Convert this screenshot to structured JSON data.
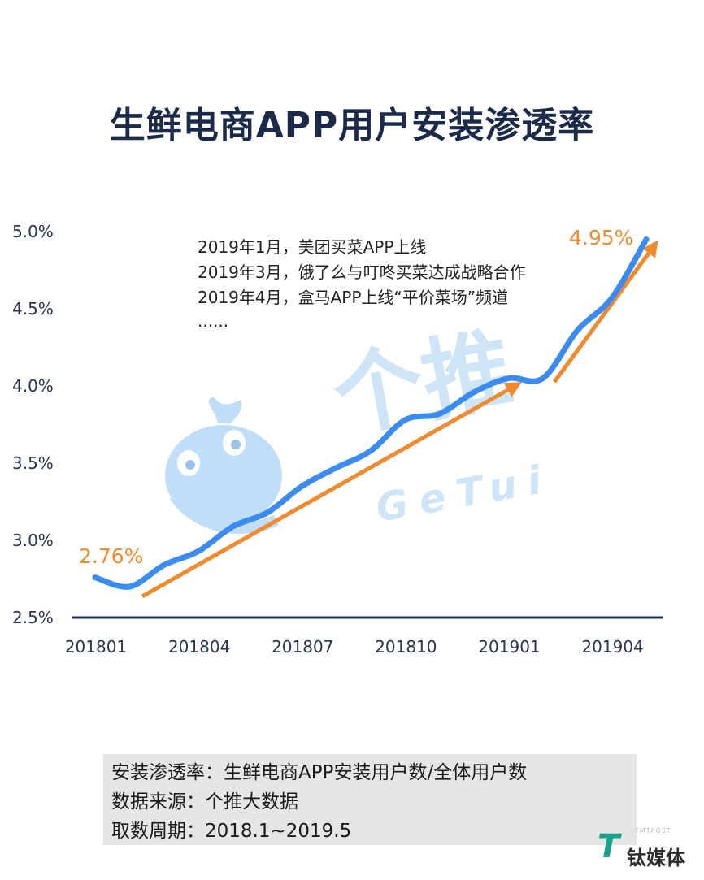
{
  "title": "生鲜电商APP用户安装渗透率",
  "annotations": [
    "2019年1月，美团买菜APP上线",
    "2019年3月，饿了么与叮咚买菜达成战略合作",
    "2019年4月，盒马APP上线“平价菜场”频道",
    "......"
  ],
  "watermark": {
    "cn": "个推",
    "en": "GeTui"
  },
  "notes": [
    "安装渗透率：生鲜电商APP安装用户数/全体用户数",
    "数据来源：个推大数据",
    "取数周期：2018.1~2019.5"
  ],
  "logo": {
    "sub": "TMTPOST",
    "text": "钛媒体"
  },
  "colors": {
    "line": "#3b8bf0",
    "arrow": "#f08a2e",
    "axis": "#1c2a4a"
  },
  "chart_data": {
    "type": "line",
    "x": [
      "201801",
      "201802",
      "201803",
      "201804",
      "201805",
      "201806",
      "201807",
      "201808",
      "201809",
      "201810",
      "201811",
      "201812",
      "201901",
      "201902",
      "201903",
      "201904",
      "201905"
    ],
    "xtick_labels": [
      "201801",
      "201804",
      "201807",
      "201810",
      "201901",
      "201904"
    ],
    "series": [
      {
        "values": [
          2.76,
          2.7,
          2.84,
          2.93,
          3.09,
          3.18,
          3.35,
          3.47,
          3.58,
          3.78,
          3.82,
          3.96,
          4.05,
          4.05,
          4.36,
          4.57,
          4.95
        ]
      }
    ],
    "ylim": [
      2.5,
      5.0
    ],
    "yticks": [
      "2.5%",
      "3.0%",
      "3.5%",
      "4.0%",
      "4.5%",
      "5.0%"
    ],
    "data_labels": {
      "first": "2.76%",
      "last": "4.95%"
    },
    "grid": false
  }
}
